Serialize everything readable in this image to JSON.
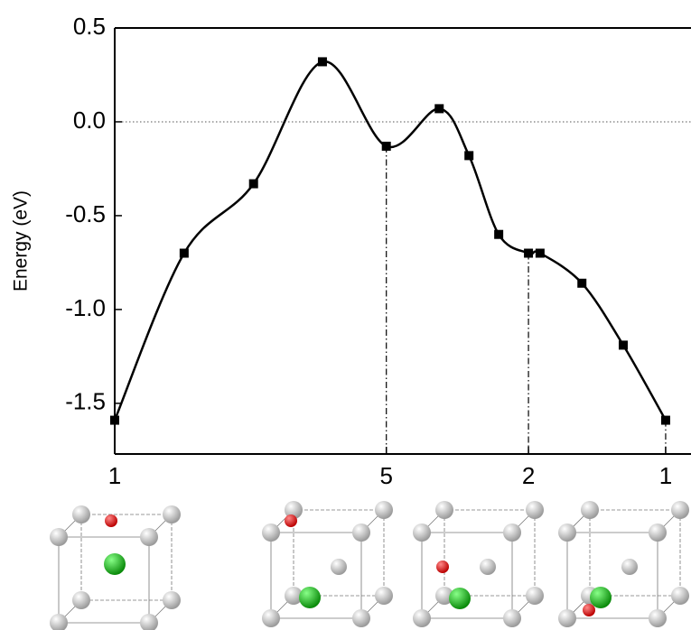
{
  "chart_data": {
    "type": "line",
    "y_label": "Energy (eV)",
    "x": [
      0,
      1.26,
      2.52,
      3.77,
      4.93,
      5.89,
      6.43,
      6.97,
      7.51,
      7.72,
      8.48,
      9.23,
      10
    ],
    "series": [
      {
        "color": "#000000",
        "values": [
          -1.59,
          -0.7,
          -0.33,
          0.32,
          -0.13,
          0.07,
          -0.18,
          -0.6,
          -0.7,
          -0.7,
          -0.86,
          -1.19,
          -1.59
        ]
      }
    ],
    "xlim": [
      0,
      10.46
    ],
    "xticks": [
      {
        "value": 0,
        "label": "1"
      },
      {
        "value": 4.93,
        "label": "5"
      },
      {
        "value": 7.51,
        "label": "2"
      },
      {
        "value": 10,
        "label": "1"
      }
    ],
    "ylim": [
      -1.77,
      0.5
    ],
    "yticks": [
      {
        "value": 0.5,
        "label": "0.5"
      },
      {
        "value": 0,
        "label": "0.0"
      },
      {
        "value": -0.5,
        "label": "-0.5"
      },
      {
        "value": -1,
        "label": "-1.0"
      },
      {
        "value": -1.5,
        "label": "-1.5"
      }
    ],
    "reference_line": 0
  }
}
